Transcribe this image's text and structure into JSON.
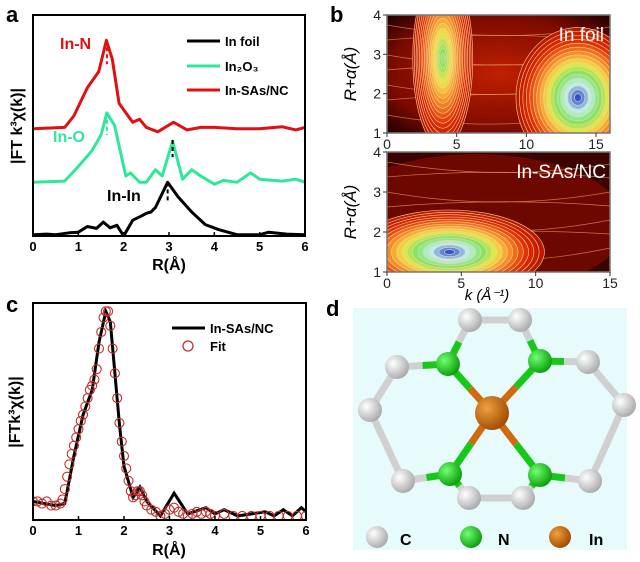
{
  "panels": {
    "a": "a",
    "b": "b",
    "c": "c",
    "d": "d"
  },
  "chart_data": [
    {
      "panel": "a",
      "type": "line",
      "xlabel": "R(Å)",
      "ylabel": "|FT k³χ(k)|",
      "xlim": [
        0,
        6
      ],
      "ylim": [
        0,
        3.5
      ],
      "xticks": [
        "0",
        "1",
        "2",
        "3",
        "4",
        "5",
        "6"
      ],
      "legend_position": "top-right",
      "annotations": [
        {
          "text": "In-N",
          "color": "#e01010"
        },
        {
          "text": "In-O",
          "color": "#2ee89a"
        },
        {
          "text": "In-In",
          "color": "#000000"
        }
      ],
      "dashed_markers_R": [
        1.63,
        1.63,
        2.97,
        3.08
      ],
      "series": [
        {
          "name": "In foil",
          "color": "#000000",
          "x": [
            0,
            0.3,
            0.5,
            0.8,
            1.0,
            1.2,
            1.4,
            1.55,
            1.7,
            1.85,
            2.0,
            2.2,
            2.4,
            2.5,
            2.6,
            2.7,
            2.97,
            3.2,
            3.5,
            3.8,
            4.1,
            4.5,
            5.0,
            5.2,
            5.6,
            6.0
          ],
          "y": [
            0.02,
            0.03,
            0.02,
            0.05,
            0.06,
            0.15,
            0.12,
            0.22,
            0.13,
            0.17,
            0.0,
            0.25,
            0.32,
            0.36,
            0.38,
            0.45,
            0.85,
            0.62,
            0.38,
            0.18,
            0.1,
            0.02,
            0.02,
            0.06,
            0.03,
            0.02
          ]
        },
        {
          "name": "In₂O₃",
          "color": "#2ee89a",
          "x": [
            0,
            0.7,
            1.0,
            1.3,
            1.5,
            1.63,
            1.8,
            2.0,
            2.05,
            2.15,
            2.35,
            2.5,
            2.7,
            2.85,
            3.08,
            3.3,
            3.5,
            3.7,
            4.0,
            4.2,
            4.5,
            4.8,
            5.0,
            5.5,
            5.8,
            6.0
          ],
          "y": [
            0.85,
            0.87,
            1.1,
            1.35,
            1.6,
            1.95,
            1.75,
            1.1,
            0.95,
            1.0,
            0.85,
            0.85,
            1.05,
            0.95,
            1.5,
            0.9,
            1.05,
            0.95,
            0.82,
            0.88,
            0.85,
            1.0,
            0.9,
            0.87,
            0.9,
            0.85
          ]
        },
        {
          "name": "In-SAs/NC",
          "color": "#e01010",
          "x": [
            0,
            0.7,
            0.9,
            1.2,
            1.45,
            1.62,
            1.75,
            1.9,
            2.2,
            2.35,
            2.5,
            2.75,
            3.1,
            3.4,
            3.7,
            4.0,
            4.5,
            5.0,
            5.5,
            5.8,
            6.0
          ],
          "y": [
            1.7,
            1.72,
            1.9,
            2.35,
            2.6,
            3.1,
            2.8,
            2.1,
            1.8,
            1.85,
            1.72,
            1.65,
            1.8,
            1.68,
            1.72,
            1.72,
            1.7,
            1.7,
            1.73,
            1.68,
            1.72
          ]
        }
      ]
    },
    {
      "panel": "b",
      "type": "heatmap",
      "xlabel": "k (Å⁻¹)",
      "ylabel": "R+α(Å)",
      "plots": [
        {
          "title": "In foil",
          "xlim": [
            0,
            16
          ],
          "ylim": [
            1,
            4
          ],
          "xticks": [
            "0",
            "5",
            "10",
            "15"
          ],
          "yticks": [
            "1",
            "2",
            "3",
            "4"
          ],
          "maxima": [
            {
              "k": 4.0,
              "R": 2.9,
              "level": 0.8
            },
            {
              "k": 13.7,
              "R": 1.9,
              "level": 1.0
            }
          ]
        },
        {
          "title": "In-SAs/NC",
          "xlim": [
            0,
            15
          ],
          "ylim": [
            1,
            4
          ],
          "xticks": [
            "0",
            "5",
            "10",
            "15"
          ],
          "yticks": [
            "1",
            "2",
            "3",
            "4"
          ],
          "maxima": [
            {
              "k": 4.2,
              "R": 1.5,
              "level": 1.0
            }
          ]
        }
      ]
    },
    {
      "panel": "c",
      "type": "line",
      "xlabel": "R(Å)",
      "ylabel": "|FTk³χ(k)|",
      "xlim": [
        0,
        6
      ],
      "ylim": [
        0,
        1.05
      ],
      "xticks": [
        "0",
        "1",
        "2",
        "3",
        "4",
        "5",
        "6"
      ],
      "legend_position": "top-right",
      "series": [
        {
          "name": "In-SAs/NC",
          "style": "line",
          "color": "#000000",
          "x": [
            0,
            0.5,
            0.7,
            0.9,
            1.1,
            1.3,
            1.45,
            1.6,
            1.7,
            1.8,
            1.9,
            2.0,
            2.2,
            2.35,
            2.5,
            2.8,
            3.1,
            3.4,
            3.8,
            4.0,
            4.2,
            4.5,
            5.1,
            5.3,
            5.5,
            5.7,
            5.9,
            6.0
          ],
          "y": [
            0.08,
            0.06,
            0.07,
            0.3,
            0.5,
            0.62,
            0.85,
            1.0,
            0.95,
            0.7,
            0.45,
            0.25,
            0.1,
            0.15,
            0.08,
            0.01,
            0.12,
            0.02,
            0.05,
            0.02,
            0.04,
            0.01,
            0.03,
            0.01,
            0.04,
            0.01,
            0.05,
            0.03
          ]
        },
        {
          "name": "Fit",
          "style": "open-circle",
          "color": "#c0302a",
          "x": [
            0,
            0.1,
            0.2,
            0.3,
            0.4,
            0.5,
            0.6,
            0.65,
            0.7,
            0.75,
            0.8,
            0.85,
            0.9,
            0.95,
            1.0,
            1.05,
            1.1,
            1.15,
            1.2,
            1.25,
            1.3,
            1.35,
            1.4,
            1.45,
            1.5,
            1.55,
            1.6,
            1.65,
            1.7,
            1.75,
            1.8,
            1.85,
            1.9,
            1.95,
            2.0,
            2.05,
            2.1,
            2.15,
            2.2,
            2.25,
            2.3,
            2.35,
            2.4,
            2.45,
            2.5,
            2.6,
            2.7,
            2.8,
            2.9,
            3.0,
            3.1,
            3.2,
            3.3,
            3.4,
            3.5,
            3.6,
            3.7,
            3.8,
            3.9,
            4.0,
            4.2,
            4.4,
            4.6,
            4.8,
            5.0,
            5.2,
            5.4,
            5.6,
            5.8,
            6.0
          ],
          "y": [
            0.08,
            0.08,
            0.07,
            0.08,
            0.06,
            0.06,
            0.07,
            0.09,
            0.14,
            0.2,
            0.26,
            0.31,
            0.35,
            0.39,
            0.43,
            0.47,
            0.5,
            0.54,
            0.58,
            0.62,
            0.64,
            0.67,
            0.72,
            0.82,
            0.9,
            0.97,
            1.0,
            1.0,
            0.93,
            0.82,
            0.7,
            0.58,
            0.46,
            0.37,
            0.3,
            0.24,
            0.18,
            0.13,
            0.1,
            0.11,
            0.13,
            0.13,
            0.11,
            0.08,
            0.06,
            0.04,
            0.03,
            0.01,
            0.02,
            0.04,
            0.05,
            0.03,
            0.02,
            0.01,
            0.02,
            0.03,
            0.02,
            0.03,
            0.02,
            0.01,
            0.02,
            0.01,
            0.01,
            0.01,
            0.01,
            0.01,
            0.01,
            0.01,
            0.01,
            0.01
          ]
        }
      ]
    }
  ],
  "structure": {
    "legend": [
      {
        "symbol": "C",
        "color": "#d8d8d8"
      },
      {
        "symbol": "N",
        "color": "#18c818"
      },
      {
        "symbol": "In",
        "color": "#d06a10"
      }
    ],
    "background": "#e8fbfc"
  }
}
